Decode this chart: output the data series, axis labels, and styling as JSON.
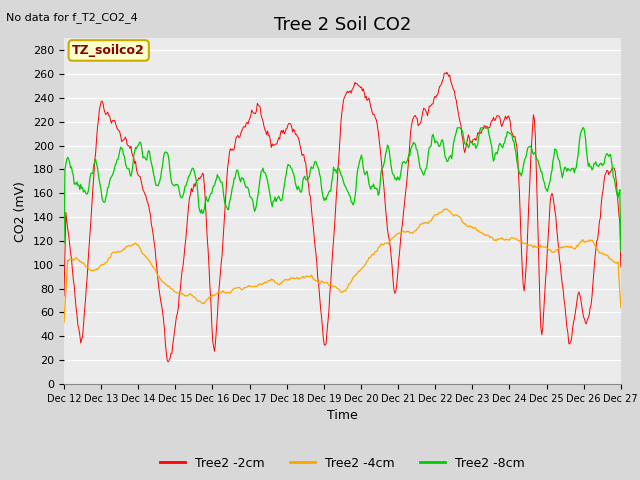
{
  "title": "Tree 2 Soil CO2",
  "no_data_text": "No data for f_T2_CO2_4",
  "ylabel": "CO2 (mV)",
  "xlabel": "Time",
  "annotation": "TZ_soilco2",
  "ylim": [
    0,
    290
  ],
  "yticks": [
    0,
    20,
    40,
    60,
    80,
    100,
    120,
    140,
    160,
    180,
    200,
    220,
    240,
    260,
    280
  ],
  "xtick_labels": [
    "Dec 12",
    "Dec 13",
    "Dec 14",
    "Dec 15",
    "Dec 16",
    "Dec 17",
    "Dec 18",
    "Dec 19",
    "Dec 20",
    "Dec 21",
    "Dec 22",
    "Dec 23",
    "Dec 24",
    "Dec 25",
    "Dec 26",
    "Dec 27"
  ],
  "legend_labels": [
    "Tree2 -2cm",
    "Tree2 -4cm",
    "Tree2 -8cm"
  ],
  "line_colors": [
    "#FF0000",
    "#FFA500",
    "#00CC00"
  ],
  "fig_bg_color": "#D8D8D8",
  "plot_bg_color": "#EBEBEB",
  "grid_color": "#FFFFFF",
  "title_fontsize": 13,
  "label_fontsize": 9,
  "tick_fontsize": 8,
  "annot_fontsize": 9
}
